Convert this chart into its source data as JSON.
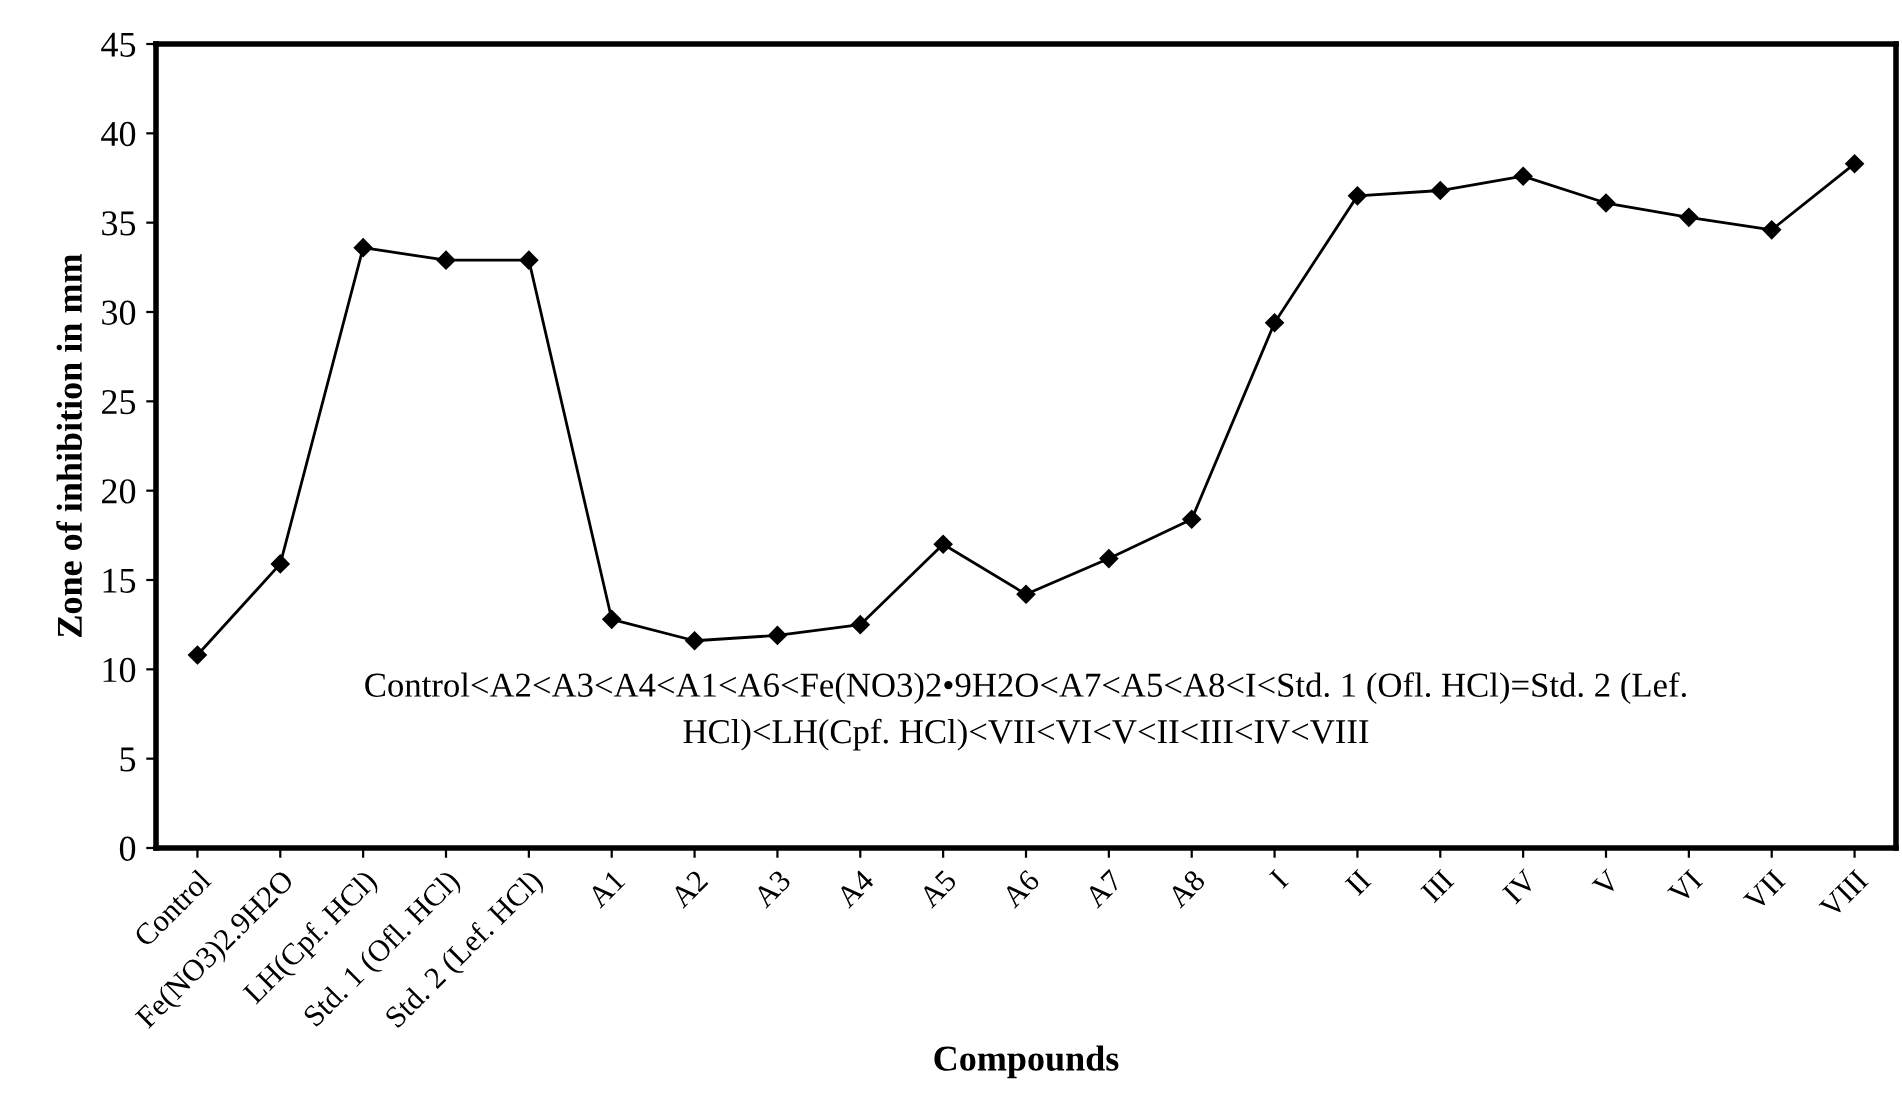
{
  "chart_data": {
    "type": "line",
    "xlabel": "Compounds",
    "ylabel": "Zone of inhibition in mm",
    "categories": [
      "Control",
      "Fe(NO3)2.9H2O",
      "LH(Cpf. HCl)",
      "Std. 1 (Ofl. HCl)",
      "Std. 2 (Lef. HCl)",
      "A1",
      "A2",
      "A3",
      "A4",
      "A5",
      "A6",
      "A7",
      "A8",
      "I",
      "II",
      "III",
      "IV",
      "V",
      "VI",
      "VII",
      "VIII"
    ],
    "series": [
      {
        "color": "#000000",
        "values": [
          10.8,
          15.9,
          33.6,
          32.9,
          32.9,
          12.8,
          11.6,
          11.9,
          12.5,
          17.0,
          14.2,
          16.2,
          18.4,
          29.4,
          36.5,
          36.8,
          37.6,
          36.1,
          35.3,
          34.6,
          38.3
        ]
      }
    ],
    "ylim": [
      0,
      45
    ],
    "yticks": [
      0,
      5,
      10,
      15,
      20,
      25,
      30,
      35,
      40,
      45
    ],
    "grid": false,
    "legend": false,
    "marker": "diamond",
    "line_style": "solid",
    "annotations": [
      "Control<A2<A3<A4<A1<A6<Fe(NO3)2•9H2O<A7<A5<A8<I<Std. 1 (Ofl. HCl)=Std. 2 (Lef.\nHCl)<LH(Cpf. HCl)<VII<VI<V<II<III<IV<VIII"
    ]
  }
}
